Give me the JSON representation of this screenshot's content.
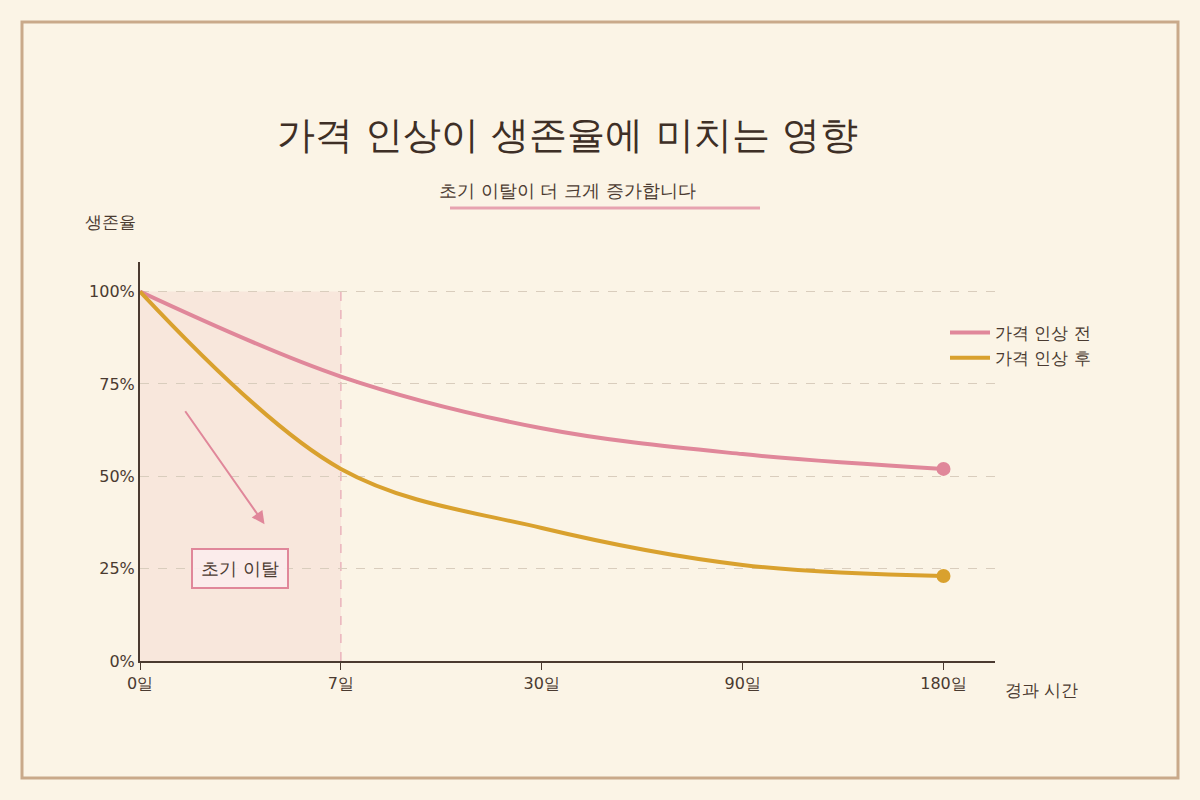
{
  "chart_data": {
    "type": "line",
    "title": "가격 인상이 생존율에 미치는 영향",
    "subtitle": "초기 이탈이 더 크게 증가합니다",
    "ylabel": "생존율",
    "xlabel": "경과 시간",
    "categories": [
      "0일",
      "7일",
      "30일",
      "90일",
      "180일"
    ],
    "series": [
      {
        "name": "가격 인상 전",
        "color": "#e0879a",
        "values": [
          100,
          77,
          63,
          56,
          52
        ]
      },
      {
        "name": "가격 인상 후",
        "color": "#d9a12e",
        "values": [
          100,
          52,
          36,
          26,
          23
        ]
      }
    ],
    "ylim": [
      0,
      108
    ],
    "yticks": [
      {
        "value": 0,
        "label": "0%"
      },
      {
        "value": 25,
        "label": "25%"
      },
      {
        "value": 50,
        "label": "50%"
      },
      {
        "value": 75,
        "label": "75%"
      },
      {
        "value": 100,
        "label": "100%"
      }
    ],
    "grid": true,
    "legend": "top right",
    "marker": "end",
    "line_style": "smooth",
    "annotations": [
      {
        "text": "초기 이탈",
        "from": "0일",
        "to": "7일"
      }
    ]
  }
}
